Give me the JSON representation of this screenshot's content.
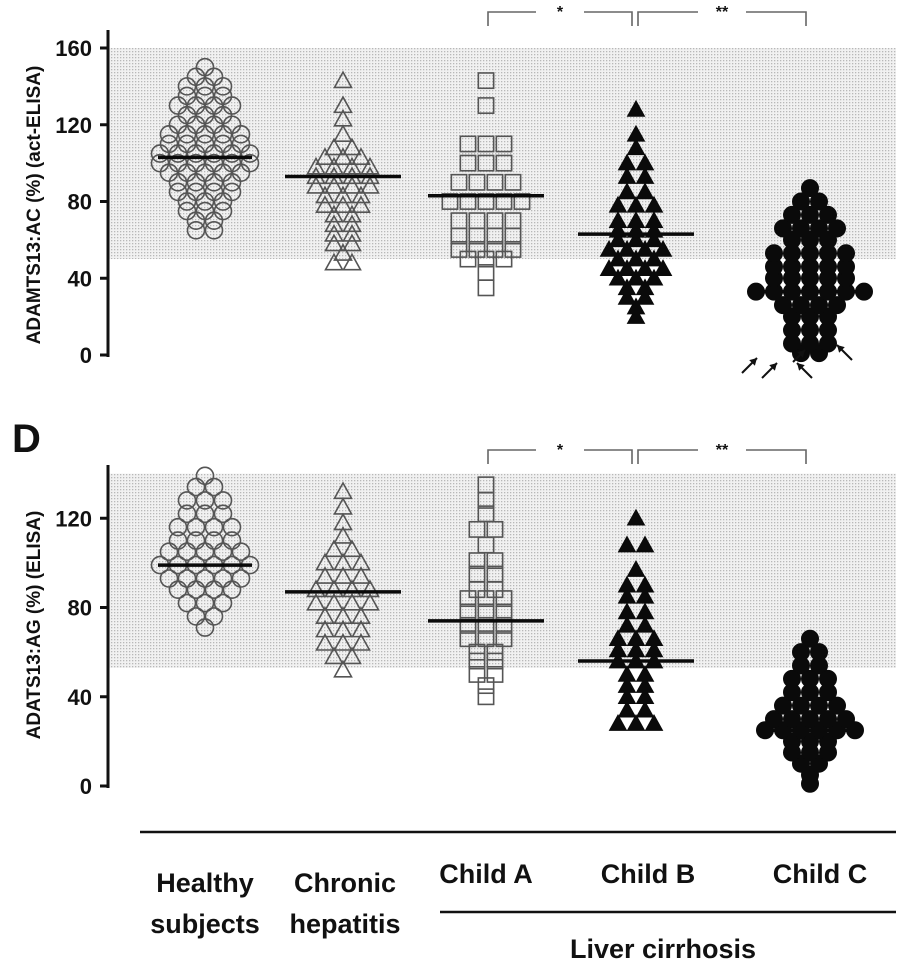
{
  "chart_data": [
    {
      "type": "scatter",
      "style": "dot-plot",
      "panel_label": "",
      "ylabel": "ADAMTS13:AC (%)  (act-ELISA)",
      "yticks": [
        0,
        40,
        80,
        120,
        160
      ],
      "ylim": [
        0,
        165
      ],
      "normal_range": [
        50,
        160
      ],
      "categories": [
        "Healthy subjects",
        "Chronic hepatitis",
        "Child A",
        "Child B",
        "Child C"
      ],
      "markers": [
        "open-circle",
        "open-triangle",
        "open-square",
        "filled-triangle",
        "filled-circle"
      ],
      "medians": [
        103,
        93,
        83,
        63,
        33
      ],
      "brackets": [
        {
          "from": "Child A",
          "to": "Child B",
          "label": "*"
        },
        {
          "from": "Child B",
          "to": "Child C",
          "label": "**"
        }
      ],
      "annotations": "arrows pointing to Child C values near 0",
      "series": [
        {
          "values": [
            150,
            145,
            145,
            140,
            140,
            140,
            135,
            135,
            135,
            130,
            130,
            130,
            130,
            125,
            125,
            125,
            120,
            120,
            120,
            120,
            115,
            115,
            115,
            115,
            115,
            110,
            110,
            110,
            110,
            110,
            105,
            105,
            105,
            105,
            105,
            105,
            100,
            100,
            100,
            100,
            100,
            100,
            95,
            95,
            95,
            95,
            95,
            90,
            90,
            90,
            90,
            85,
            85,
            85,
            85,
            80,
            80,
            80,
            75,
            75,
            75,
            70,
            70,
            65,
            65
          ]
        },
        {
          "values": [
            143,
            130,
            123,
            115,
            108,
            108,
            103,
            103,
            103,
            98,
            98,
            98,
            98,
            93,
            93,
            93,
            93,
            88,
            88,
            88,
            88,
            83,
            83,
            83,
            78,
            78,
            78,
            73,
            73,
            68,
            68,
            63,
            63,
            58,
            58,
            53,
            48,
            48
          ]
        },
        {
          "values": [
            143,
            130,
            110,
            110,
            110,
            100,
            100,
            100,
            90,
            90,
            90,
            90,
            80,
            80,
            80,
            80,
            80,
            70,
            70,
            70,
            70,
            62,
            62,
            62,
            62,
            55,
            55,
            55,
            55,
            50,
            50,
            50,
            43,
            35
          ]
        },
        {
          "values": [
            128,
            115,
            108,
            100,
            100,
            93,
            93,
            85,
            85,
            78,
            78,
            78,
            70,
            70,
            70,
            65,
            65,
            65,
            60,
            60,
            60,
            55,
            55,
            55,
            55,
            50,
            50,
            50,
            45,
            45,
            45,
            45,
            40,
            40,
            40,
            35,
            35,
            30,
            30,
            25,
            20
          ]
        },
        {
          "values": [
            87,
            80,
            80,
            73,
            73,
            73,
            66,
            66,
            66,
            66,
            60,
            60,
            60,
            53,
            53,
            53,
            53,
            53,
            46,
            46,
            46,
            46,
            46,
            40,
            40,
            40,
            40,
            40,
            33,
            33,
            33,
            33,
            33,
            33,
            33,
            26,
            26,
            26,
            26,
            20,
            20,
            20,
            13,
            13,
            13,
            6,
            6,
            6,
            1,
            1
          ]
        }
      ]
    },
    {
      "type": "scatter",
      "style": "dot-plot",
      "panel_label": "D",
      "ylabel": "ADATS13:AG (%) (ELISA)",
      "yticks": [
        0,
        40,
        80,
        120
      ],
      "ylim": [
        0,
        145
      ],
      "normal_range": [
        53,
        140
      ],
      "categories": [
        "Healthy subjects",
        "Chronic hepatitis",
        "Child A",
        "Child B",
        "Child C"
      ],
      "markers": [
        "open-circle",
        "open-triangle",
        "open-square",
        "filled-triangle",
        "filled-circle"
      ],
      "medians": [
        99,
        87,
        74,
        56,
        25
      ],
      "brackets": [
        {
          "from": "Child A",
          "to": "Child B",
          "label": "*"
        },
        {
          "from": "Child B",
          "to": "Child C",
          "label": "**"
        }
      ],
      "series": [
        {
          "values": [
            139,
            134,
            134,
            128,
            128,
            128,
            122,
            122,
            122,
            116,
            116,
            116,
            116,
            110,
            110,
            110,
            110,
            105,
            105,
            105,
            105,
            105,
            99,
            99,
            99,
            99,
            99,
            99,
            93,
            93,
            93,
            93,
            93,
            88,
            88,
            88,
            88,
            82,
            82,
            82,
            76,
            76,
            71
          ]
        },
        {
          "values": [
            132,
            125,
            118,
            112,
            106,
            106,
            100,
            100,
            100,
            94,
            94,
            94,
            88,
            88,
            88,
            88,
            82,
            82,
            82,
            82,
            76,
            76,
            76,
            70,
            70,
            70,
            64,
            64,
            64,
            58,
            58,
            52
          ]
        },
        {
          "values": [
            135,
            128,
            122,
            115,
            115,
            108,
            101,
            101,
            95,
            95,
            88,
            88,
            84,
            84,
            84,
            78,
            78,
            78,
            72,
            72,
            72,
            66,
            66,
            66,
            60,
            60,
            56,
            56,
            50,
            50,
            45,
            40
          ]
        },
        {
          "values": [
            120,
            108,
            108,
            97,
            90,
            90,
            85,
            85,
            78,
            78,
            72,
            72,
            66,
            66,
            66,
            61,
            61,
            61,
            56,
            56,
            56,
            50,
            50,
            45,
            45,
            40,
            40,
            34,
            34,
            28,
            28,
            28
          ]
        },
        {
          "values": [
            66,
            60,
            60,
            54,
            54,
            48,
            48,
            48,
            42,
            42,
            42,
            36,
            36,
            36,
            36,
            30,
            30,
            30,
            30,
            30,
            25,
            25,
            25,
            25,
            25,
            25,
            20,
            20,
            20,
            15,
            15,
            15,
            10,
            10,
            5,
            1
          ]
        }
      ]
    }
  ],
  "group_labels": {
    "healthy": [
      "Healthy",
      "subjects"
    ],
    "chronic": [
      "Chronic",
      "hepatitis"
    ],
    "child_a": "Child A",
    "child_b": "Child B",
    "child_c": "Child C",
    "cirrhosis": "Liver cirrhosis"
  }
}
